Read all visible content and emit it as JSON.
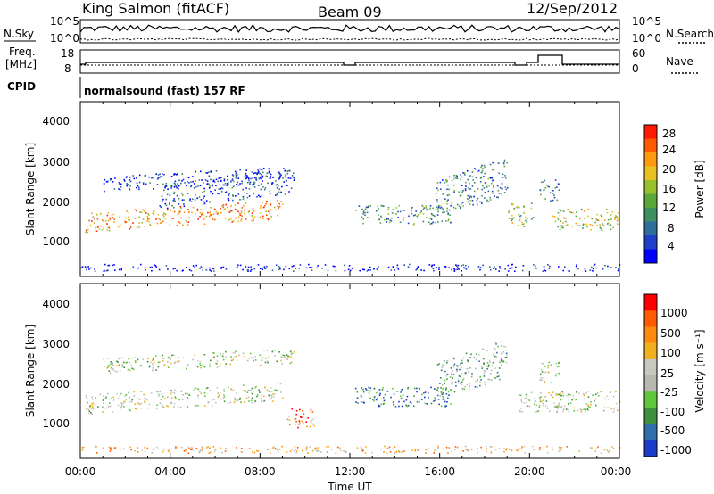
{
  "header": {
    "station": "King Salmon (fitACF)",
    "beam": "Beam 09",
    "date": "12/Sep/2012"
  },
  "noise_panel": {
    "left_label": "N.Sky",
    "right_label": "N.Search",
    "left_ticks": [
      "10^5",
      "10^0"
    ],
    "right_ticks": [
      "10^5",
      "10^0"
    ]
  },
  "freq_panel": {
    "left_label_line1": "Freq.",
    "left_label_line2": "[MHz]",
    "right_label": "Nave",
    "left_ticks": [
      "18",
      "8"
    ],
    "right_ticks": [
      "60",
      "0"
    ]
  },
  "cpid_panel": {
    "label": "CPID",
    "program": "normalsound (fast) 157 RF"
  },
  "power_panel": {
    "ylabel": "Slant Range [km]",
    "yticks": [
      "4000",
      "3000",
      "2000",
      "1000"
    ],
    "colorbar_label": "Power [dB]",
    "colorbar_ticks": [
      "28",
      "24",
      "20",
      "16",
      "12",
      "8",
      "4"
    ],
    "colors": [
      "#0000ff",
      "#1f3fc8",
      "#2f6e98",
      "#3e8f62",
      "#5aa83a",
      "#98c02a",
      "#e8c020",
      "#ff9a10",
      "#ff5a00",
      "#ff1a00"
    ]
  },
  "velocity_panel": {
    "ylabel": "Slant Range [km]",
    "yticks": [
      "4000",
      "3000",
      "2000",
      "1000"
    ],
    "colorbar_label": "Velocity [m s⁻¹]",
    "colorbar_ticks": [
      "1000",
      "500",
      "100",
      "25",
      "-25",
      "-100",
      "-500",
      "-1000"
    ],
    "colors": [
      "#1a3ec8",
      "#2f6ea8",
      "#3e8f3e",
      "#5ec83a",
      "#b8b8b0",
      "#c8c8c0",
      "#f0b020",
      "#ff8a10",
      "#ff5a00",
      "#ff0000"
    ]
  },
  "xaxis": {
    "ticks": [
      "00:00",
      "04:00",
      "08:00",
      "12:00",
      "16:00",
      "20:00",
      "00:00"
    ],
    "label": "Time UT"
  },
  "chart_data": [
    {
      "type": "heatmap",
      "title": "Power",
      "xlabel": "Time UT",
      "ylabel": "Slant Range [km]",
      "xlim": [
        0,
        24
      ],
      "ylim": [
        0,
        4500
      ],
      "colorbar": {
        "label": "Power [dB]",
        "ticks": [
          4,
          8,
          12,
          16,
          20,
          24,
          28
        ]
      },
      "scatter_bands": [
        {
          "t0": 0.2,
          "t1": 9.0,
          "r0": 1150,
          "r1": 1650,
          "level": 0.75,
          "slope": 350
        },
        {
          "t0": 1.0,
          "t1": 9.5,
          "r0": 2200,
          "r1": 2600,
          "level": 0.1,
          "slope": 250
        },
        {
          "t0": 3.5,
          "t1": 9.5,
          "r0": 1750,
          "r1": 2400,
          "level": 0.2,
          "slope": 400
        },
        {
          "t0": 12.2,
          "t1": 16.5,
          "r0": 1350,
          "r1": 1850,
          "level": 0.35,
          "slope": 0
        },
        {
          "t0": 15.8,
          "t1": 19.0,
          "r0": 1500,
          "r1": 2500,
          "level": 0.3,
          "slope": 600
        },
        {
          "t0": 19.0,
          "t1": 20.2,
          "r0": 1300,
          "r1": 1900,
          "level": 0.5,
          "slope": 0
        },
        {
          "t0": 21.0,
          "t1": 24.0,
          "r0": 1200,
          "r1": 1750,
          "level": 0.55,
          "slope": 0
        },
        {
          "t0": 20.4,
          "t1": 21.3,
          "r0": 1950,
          "r1": 2500,
          "level": 0.3,
          "slope": 0
        },
        {
          "t0": 0.0,
          "t1": 24.0,
          "r0": 150,
          "r1": 330,
          "level": 0.05,
          "slope": 0
        }
      ]
    },
    {
      "type": "heatmap",
      "title": "Velocity",
      "xlabel": "Time UT",
      "ylabel": "Slant Range [km]",
      "xlim": [
        0,
        24
      ],
      "ylim": [
        0,
        4500
      ],
      "colorbar": {
        "label": "Velocity [m s⁻¹]",
        "ticks": [
          -1000,
          -500,
          -100,
          -25,
          25,
          100,
          500,
          1000
        ]
      },
      "scatter_bands": [
        {
          "t0": 0.2,
          "t1": 9.0,
          "r0": 1150,
          "r1": 1650,
          "level": 0.45,
          "slope": 350
        },
        {
          "t0": 1.0,
          "t1": 9.5,
          "r0": 2200,
          "r1": 2600,
          "level": 0.45,
          "slope": 250
        },
        {
          "t0": 9.2,
          "t1": 10.4,
          "r0": 800,
          "r1": 1300,
          "level": 0.8,
          "slope": 0
        },
        {
          "t0": 12.2,
          "t1": 16.5,
          "r0": 1350,
          "r1": 1850,
          "level": 0.15,
          "slope": 0
        },
        {
          "t0": 15.8,
          "t1": 19.0,
          "r0": 1500,
          "r1": 2500,
          "level": 0.35,
          "slope": 600
        },
        {
          "t0": 19.5,
          "t1": 24.0,
          "r0": 1200,
          "r1": 1750,
          "level": 0.45,
          "slope": 0
        },
        {
          "t0": 20.4,
          "t1": 21.3,
          "r0": 1950,
          "r1": 2500,
          "level": 0.45,
          "slope": 0
        },
        {
          "t0": 0.0,
          "t1": 24.0,
          "r0": 150,
          "r1": 330,
          "level": 0.65,
          "slope": 0
        }
      ]
    }
  ]
}
